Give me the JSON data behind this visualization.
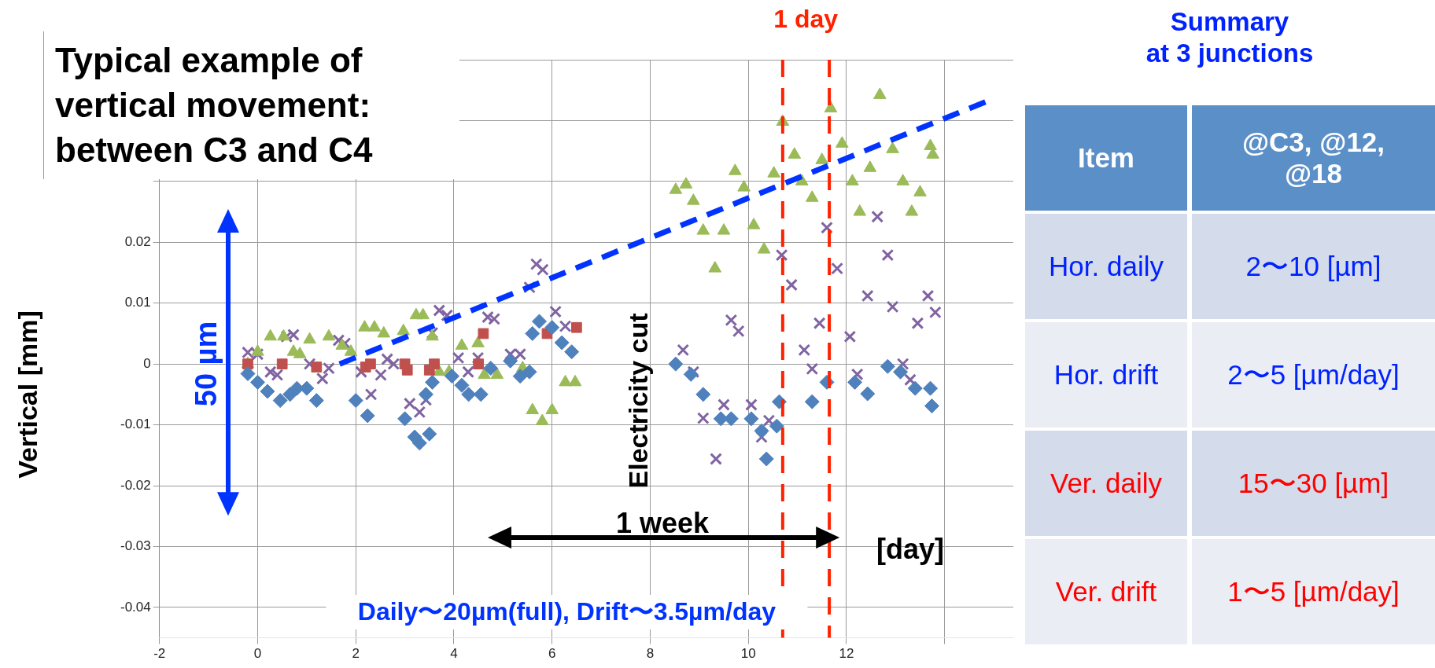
{
  "chart_data": [
    {
      "type": "scatter",
      "title": "Typical example of vertical movement: between C3 and C4",
      "xlabel": "[day]",
      "ylabel": "Vertical  [mm]",
      "xlim": [
        -2,
        15.4
      ],
      "ylim": [
        -0.045,
        0.05
      ],
      "xticks": [
        -2,
        0,
        2,
        4,
        6,
        8,
        10,
        12,
        {
          "value": 14,
          "label": null
        }
      ],
      "yticks": [
        -0.04,
        -0.03,
        -0.02,
        -0.01,
        0,
        0.01,
        0.02,
        {
          "value": 0.03,
          "label": null
        },
        {
          "value": 0.04,
          "label": null
        },
        {
          "value": 0.05,
          "label": null
        }
      ],
      "grid": true,
      "legend": false,
      "series": [
        {
          "color": "#4f81bd",
          "marker": "diamond",
          "x": [
            -0.2,
            0,
            0.2,
            0.46,
            0.66,
            0.8,
            1.0,
            1.2,
            2.0,
            2.24,
            3.0,
            3.2,
            3.3,
            3.5,
            3.43,
            3.56,
            3.96,
            4.16,
            4.3,
            4.55,
            4.75,
            5.15,
            5.35,
            5.54,
            5.6,
            5.74,
            6.0,
            6.2,
            6.4,
            8.52,
            8.83,
            9.08,
            9.44,
            9.65,
            10.06,
            10.27,
            10.37,
            10.58,
            10.63,
            11.3,
            11.6,
            12.17,
            12.43,
            12.84,
            13.1,
            13.4,
            13.71,
            13.74
          ],
          "values": [
            -0.0016,
            -0.003,
            -0.0045,
            -0.006,
            -0.005,
            -0.004,
            -0.004,
            -0.006,
            -0.006,
            -0.0085,
            -0.009,
            -0.012,
            -0.013,
            -0.0115,
            -0.005,
            -0.003,
            -0.002,
            -0.0035,
            -0.005,
            -0.005,
            -0.0007,
            0.0005,
            -0.002,
            -0.0013,
            0.005,
            0.007,
            0.006,
            0.0035,
            0.002,
            0,
            -0.0017,
            -0.005,
            -0.009,
            -0.009,
            -0.009,
            -0.011,
            -0.0156,
            -0.0102,
            -0.0062,
            -0.0062,
            -0.003,
            -0.003,
            -0.0049,
            -0.0004,
            -0.0013,
            -0.004,
            -0.004,
            -0.0069
          ]
        },
        {
          "color": "#c0504d",
          "marker": "square",
          "x": [
            -0.2,
            0.5,
            1.2,
            2.2,
            2.3,
            3.0,
            3.05,
            3.5,
            3.6,
            4.5,
            4.6,
            5.9,
            6.0,
            6.5
          ],
          "values": [
            0,
            0,
            -0.0005,
            -0.0005,
            0,
            0,
            -0.001,
            -0.001,
            0,
            0,
            0.005,
            0.005,
            null,
            0.006
          ]
        },
        {
          "color": "#9bbb59",
          "marker": "triangle",
          "x": [
            -0.2,
            0,
            0.26,
            0.53,
            0.73,
            0.86,
            1.06,
            1.45,
            1.72,
            1.9,
            2.18,
            2.38,
            2.57,
            2.97,
            3.23,
            3.37,
            3.56,
            3.7,
            3.9,
            4.16,
            4.49,
            4.62,
            4.88,
            5.2,
            5.4,
            5.6,
            5.8,
            6.0,
            6.27,
            6.47,
            8.52,
            8.73,
            8.88,
            9.08,
            9.32,
            9.5,
            9.73,
            9.91,
            10.11,
            10.32,
            10.52,
            10.7,
            10.94,
            11.09,
            11.3,
            11.5,
            11.68,
            11.91,
            12.12,
            12.27,
            12.48,
            12.68,
            12.94,
            13.15,
            13.33,
            13.5,
            13.71,
            13.76
          ],
          "values": [
            0,
            0.002,
            0.0045,
            0.0045,
            0.002,
            0.0016,
            0.004,
            0.0045,
            0.003,
            0.002,
            0.006,
            0.006,
            0.005,
            0.0054,
            0.008,
            0.008,
            0.0045,
            -0.0013,
            -0.0013,
            0.003,
            0.0034,
            -0.0018,
            -0.0018,
            null,
            -0.0007,
            -0.0076,
            -0.0094,
            -0.0076,
            -0.003,
            -0.003,
            0.0286,
            0.0295,
            0.0268,
            0.0219,
            0.0157,
            0.0219,
            0.0317,
            0.029,
            0.0228,
            0.0188,
            0.0313,
            0.0398,
            0.0344,
            0.03,
            0.0273,
            0.0335,
            0.042,
            0.0362,
            0.03,
            0.025,
            0.0322,
            0.0442,
            0.0353,
            0.03,
            0.025,
            0.0282,
            0.0358,
            0.0344
          ]
        },
        {
          "color": "#8064a2",
          "marker": "cross",
          "x": [
            -0.2,
            0,
            0.26,
            0.4,
            0.59,
            0.73,
            1.06,
            1.32,
            1.45,
            1.65,
            1.78,
            2.11,
            2.31,
            2.51,
            2.64,
            2.77,
            3.1,
            3.3,
            3.43,
            3.56,
            3.7,
            3.86,
            4.09,
            4.29,
            4.49,
            4.69,
            4.82,
            5.15,
            5.35,
            5.54,
            5.68,
            5.81,
            6.07,
            6.27,
            6.47,
            8.67,
            8.88,
            9.08,
            9.34,
            9.5,
            9.65,
            9.8,
            10.06,
            10.27,
            10.42,
            10.68,
            10.88,
            11.14,
            11.3,
            11.45,
            11.6,
            11.81,
            12.07,
            12.22,
            12.43,
            12.63,
            12.84,
            12.94,
            13.15,
            13.3,
            13.45,
            13.66,
            13.81
          ],
          "values": [
            0.0019,
            0.0016,
            -0.0013,
            -0.0018,
            0.0045,
            0.0048,
            0,
            -0.0024,
            -0.0007,
            0.0039,
            0.0034,
            -0.0013,
            -0.005,
            -0.0018,
            0.0008,
            0,
            -0.0065,
            -0.0079,
            -0.0059,
            0.0051,
            0.0088,
            0.008,
            0.001,
            -0.0013,
            0.001,
            0.0077,
            0.0074,
            0.0016,
            0.0016,
            0.0126,
            0.0164,
            0.0155,
            0.0086,
            0.0062,
            null,
            0.0023,
            -0.0013,
            -0.0089,
            -0.0156,
            -0.0067,
            0.0072,
            0.0054,
            -0.0067,
            -0.012,
            -0.0093,
            0.0179,
            0.013,
            0.0023,
            -0.0008,
            0.0067,
            0.0224,
            0.0157,
            0.0045,
            -0.0017,
            0.0112,
            0.0242,
            0.0179,
            0.0094,
            0,
            -0.0026,
            0.0067,
            0.0112,
            0.0085
          ]
        },
        {
          "type": "line",
          "color": "#0033ff",
          "marker": "none",
          "line_style": "dashed",
          "x": [
            1.67,
            14.9
          ],
          "values": [
            0,
            0.0433
          ]
        }
      ],
      "ref_lines": [
        {
          "axis": "x",
          "value": 10.7,
          "color": "#ff2200",
          "line_style": "dashed"
        },
        {
          "axis": "x",
          "value": 11.65,
          "color": "#ff2200",
          "line_style": "dashed"
        }
      ],
      "annotations": [
        "1 day",
        "50 µm",
        "Electricity cut",
        "1 week",
        "Daily〜20µm(full),  Drift〜3.5µm/day"
      ]
    },
    {
      "type": "other",
      "title": "Summary\nat 3 junctions",
      "annotations": [
        "Item",
        "@C3, @12, @18",
        "Hor. daily",
        "2〜10 [µm]",
        "Hor. drift",
        "2〜5 [µm/day]",
        "Ver. daily",
        "15〜30 [µm]",
        "Ver. drift",
        "1〜5 [µm/day]"
      ]
    }
  ]
}
